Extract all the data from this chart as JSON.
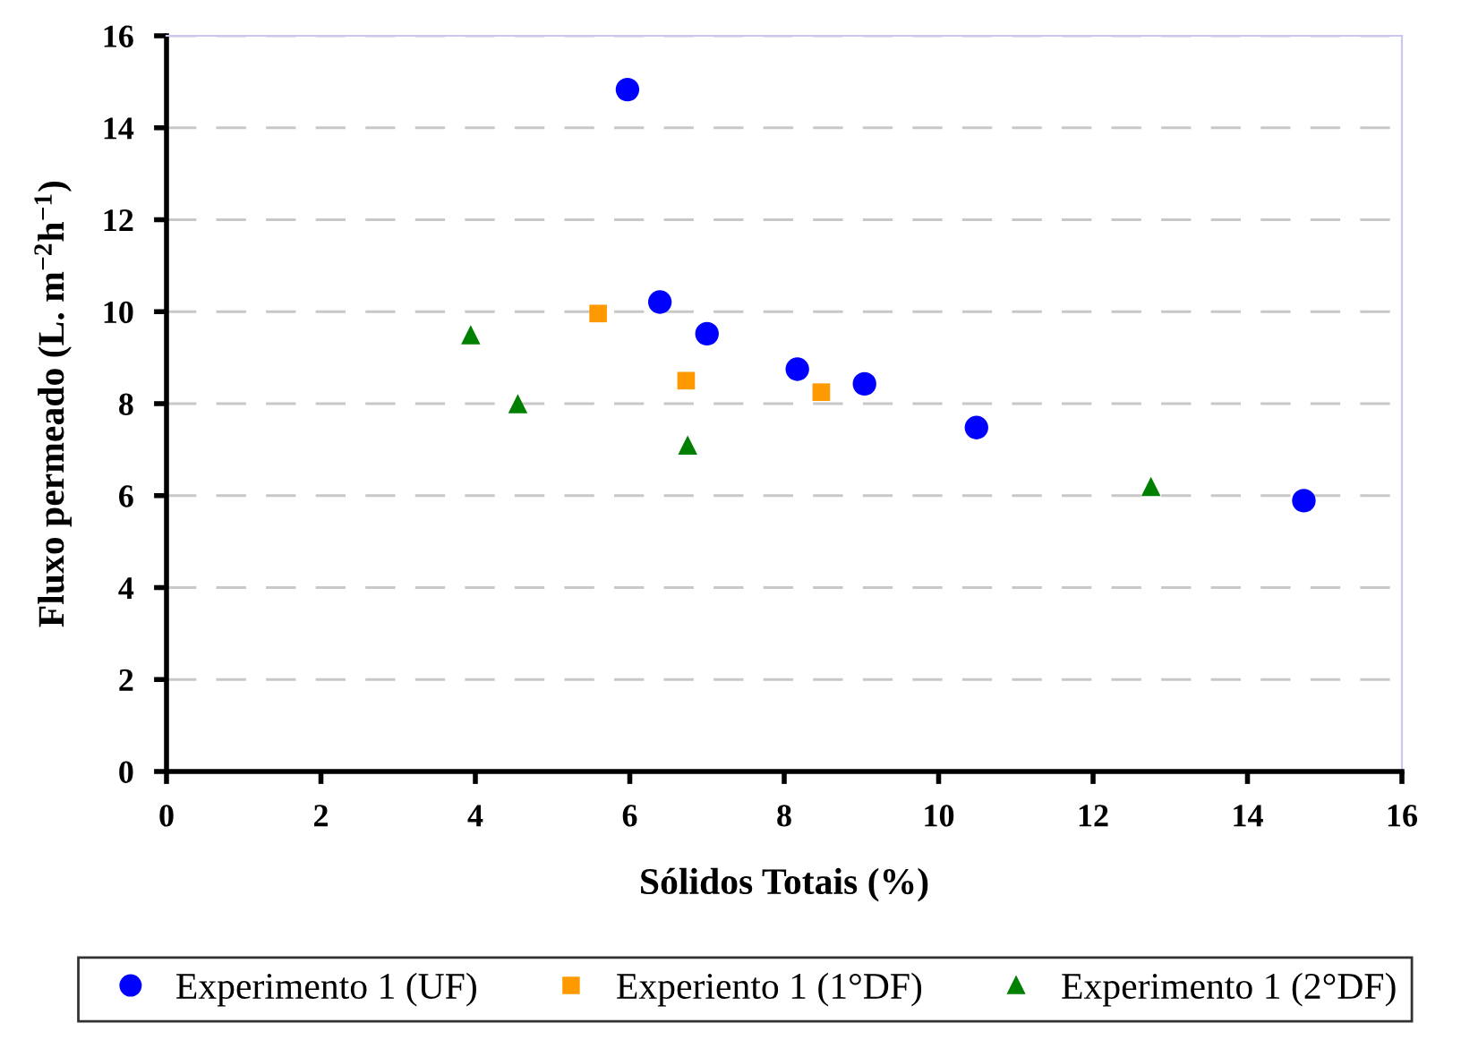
{
  "chart_data": {
    "type": "scatter",
    "xlabel": "Sólidos Totais (%)",
    "ylabel": "Fluxo permeado (L. m$^{−2}$h$^{−1}$)",
    "xlim": [
      0,
      16
    ],
    "ylim": [
      0,
      16
    ],
    "xticks": [
      0,
      2,
      4,
      6,
      8,
      10,
      12,
      14,
      16
    ],
    "yticks": [
      0,
      2,
      4,
      6,
      8,
      10,
      12,
      14,
      16
    ],
    "grid": "y",
    "legend": "bottom",
    "series": [
      {
        "name": "Experimento 1 (UF)",
        "color": "#0000ff",
        "marker": "circle",
        "x": [
          5.97,
          6.39,
          7.0,
          8.17,
          9.04,
          10.49,
          14.73
        ],
        "values": [
          14.83,
          10.21,
          9.52,
          8.75,
          8.43,
          7.48,
          5.89
        ]
      },
      {
        "name": "Experiento 1 (1°DF)",
        "color": "#ff9900",
        "marker": "square",
        "x": [
          5.59,
          6.73,
          8.48
        ],
        "values": [
          9.96,
          8.5,
          8.25
        ]
      },
      {
        "name": "Experimento 1 (2°DF)",
        "color": "#008000",
        "marker": "triangle",
        "x": [
          3.94,
          4.55,
          6.75,
          12.75
        ],
        "values": [
          9.5,
          8.0,
          7.1,
          6.2
        ]
      }
    ]
  }
}
